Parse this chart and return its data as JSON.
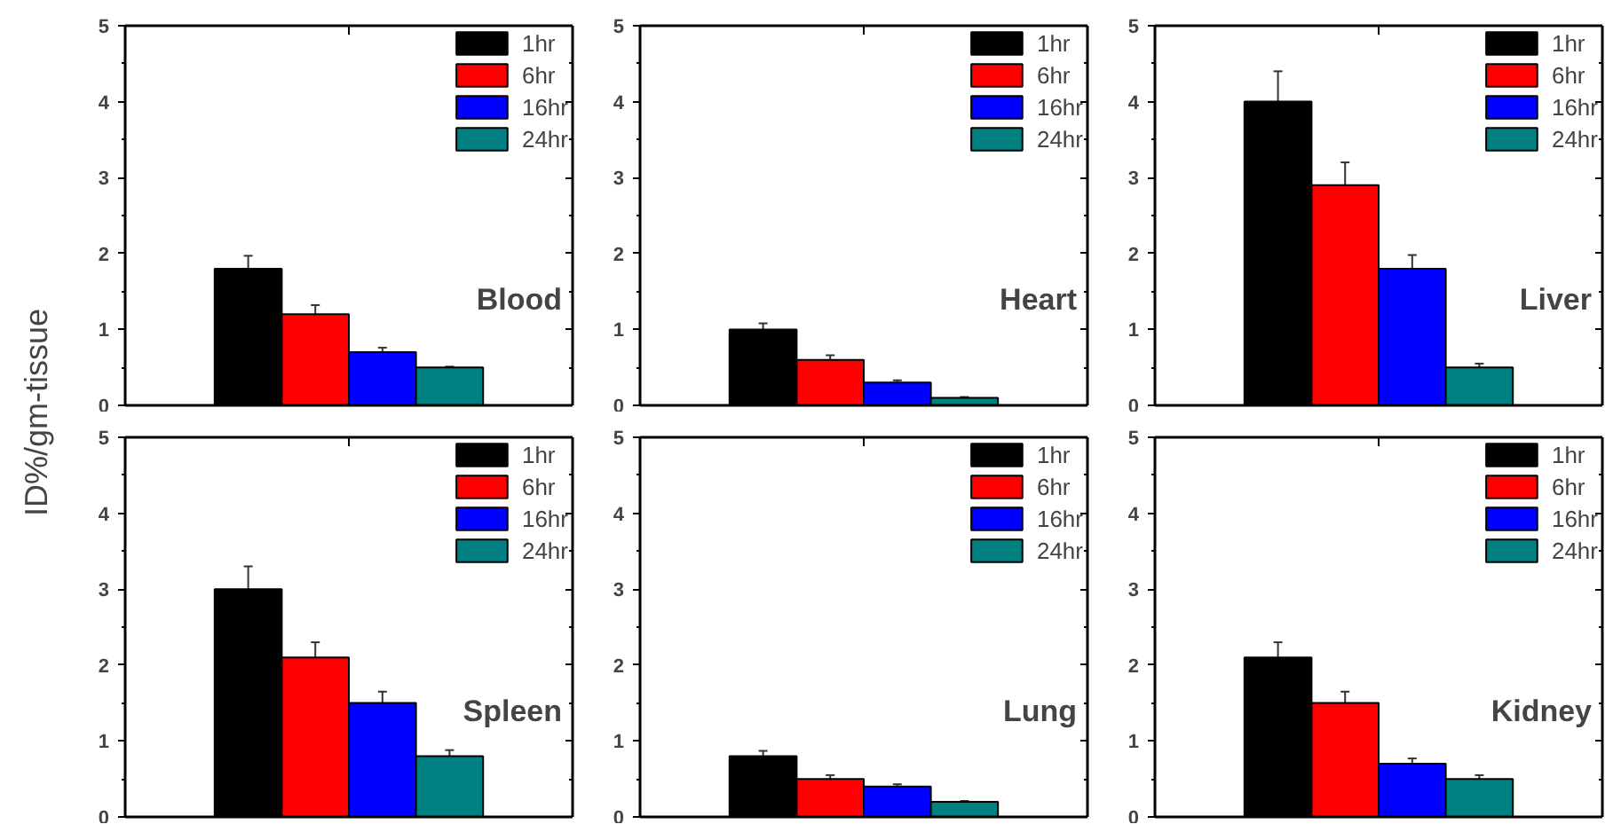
{
  "chart_data": [
    {
      "type": "bar",
      "ylabel": "ID%/gm-tissue",
      "categories": [
        null
      ],
      "ylim": [
        0,
        5
      ],
      "yticks": [
        0,
        1,
        2,
        3,
        4,
        5
      ],
      "grid": false,
      "legend": "top right",
      "annotations": [
        "Blood"
      ],
      "series": [
        {
          "name": "1hr",
          "color": "#000000",
          "values": [
            1.8
          ],
          "errors": [
            0.17
          ]
        },
        {
          "name": "6hr",
          "color": "#ff0000",
          "values": [
            1.2
          ],
          "errors": [
            0.12
          ]
        },
        {
          "name": "16hr",
          "color": "#0000ff",
          "values": [
            0.7
          ],
          "errors": [
            0.06
          ]
        },
        {
          "name": "24hr",
          "color": "#008080",
          "values": [
            0.5
          ],
          "errors": [
            0.01
          ]
        }
      ]
    },
    {
      "type": "bar",
      "categories": [
        null
      ],
      "ylim": [
        0,
        5
      ],
      "yticks": [
        0,
        1,
        2,
        3,
        4,
        5
      ],
      "grid": false,
      "legend": "top right",
      "annotations": [
        "Heart"
      ],
      "series": [
        {
          "name": "1hr",
          "color": "#000000",
          "values": [
            1.0
          ],
          "errors": [
            0.08
          ]
        },
        {
          "name": "6hr",
          "color": "#ff0000",
          "values": [
            0.6
          ],
          "errors": [
            0.06
          ]
        },
        {
          "name": "16hr",
          "color": "#0000ff",
          "values": [
            0.3
          ],
          "errors": [
            0.03
          ]
        },
        {
          "name": "24hr",
          "color": "#008080",
          "values": [
            0.1
          ],
          "errors": [
            0.01
          ]
        }
      ]
    },
    {
      "type": "bar",
      "categories": [
        null
      ],
      "ylim": [
        0,
        5
      ],
      "yticks": [
        0,
        1,
        2,
        3,
        4,
        5
      ],
      "grid": false,
      "legend": "top right",
      "annotations": [
        "Liver"
      ],
      "series": [
        {
          "name": "1hr",
          "color": "#000000",
          "values": [
            4.0
          ],
          "errors": [
            0.4
          ]
        },
        {
          "name": "6hr",
          "color": "#ff0000",
          "values": [
            2.9
          ],
          "errors": [
            0.3
          ]
        },
        {
          "name": "16hr",
          "color": "#0000ff",
          "values": [
            1.8
          ],
          "errors": [
            0.18
          ]
        },
        {
          "name": "24hr",
          "color": "#008080",
          "values": [
            0.5
          ],
          "errors": [
            0.05
          ]
        }
      ]
    },
    {
      "type": "bar",
      "categories": [
        null
      ],
      "ylim": [
        0,
        5
      ],
      "yticks": [
        0,
        1,
        2,
        3,
        4,
        5
      ],
      "grid": false,
      "legend": "top right",
      "annotations": [
        "Spleen"
      ],
      "series": [
        {
          "name": "1hr",
          "color": "#000000",
          "values": [
            3.0
          ],
          "errors": [
            0.3
          ]
        },
        {
          "name": "6hr",
          "color": "#ff0000",
          "values": [
            2.1
          ],
          "errors": [
            0.2
          ]
        },
        {
          "name": "16hr",
          "color": "#0000ff",
          "values": [
            1.5
          ],
          "errors": [
            0.15
          ]
        },
        {
          "name": "24hr",
          "color": "#008080",
          "values": [
            0.8
          ],
          "errors": [
            0.08
          ]
        }
      ]
    },
    {
      "type": "bar",
      "categories": [
        null
      ],
      "ylim": [
        0,
        5
      ],
      "yticks": [
        0,
        1,
        2,
        3,
        4,
        5
      ],
      "grid": false,
      "legend": "top right",
      "annotations": [
        "Lung"
      ],
      "series": [
        {
          "name": "1hr",
          "color": "#000000",
          "values": [
            0.8
          ],
          "errors": [
            0.07
          ]
        },
        {
          "name": "6hr",
          "color": "#ff0000",
          "values": [
            0.5
          ],
          "errors": [
            0.05
          ]
        },
        {
          "name": "16hr",
          "color": "#0000ff",
          "values": [
            0.4
          ],
          "errors": [
            0.03
          ]
        },
        {
          "name": "24hr",
          "color": "#008080",
          "values": [
            0.2
          ],
          "errors": [
            0.01
          ]
        }
      ]
    },
    {
      "type": "bar",
      "categories": [
        null
      ],
      "ylim": [
        0,
        5
      ],
      "yticks": [
        0,
        1,
        2,
        3,
        4,
        5
      ],
      "grid": false,
      "legend": "top right",
      "annotations": [
        "Kidney"
      ],
      "series": [
        {
          "name": "1hr",
          "color": "#000000",
          "values": [
            2.1
          ],
          "errors": [
            0.2
          ]
        },
        {
          "name": "6hr",
          "color": "#ff0000",
          "values": [
            1.5
          ],
          "errors": [
            0.15
          ]
        },
        {
          "name": "16hr",
          "color": "#0000ff",
          "values": [
            0.7
          ],
          "errors": [
            0.07
          ]
        },
        {
          "name": "24hr",
          "color": "#008080",
          "values": [
            0.5
          ],
          "errors": [
            0.05
          ]
        }
      ]
    }
  ]
}
